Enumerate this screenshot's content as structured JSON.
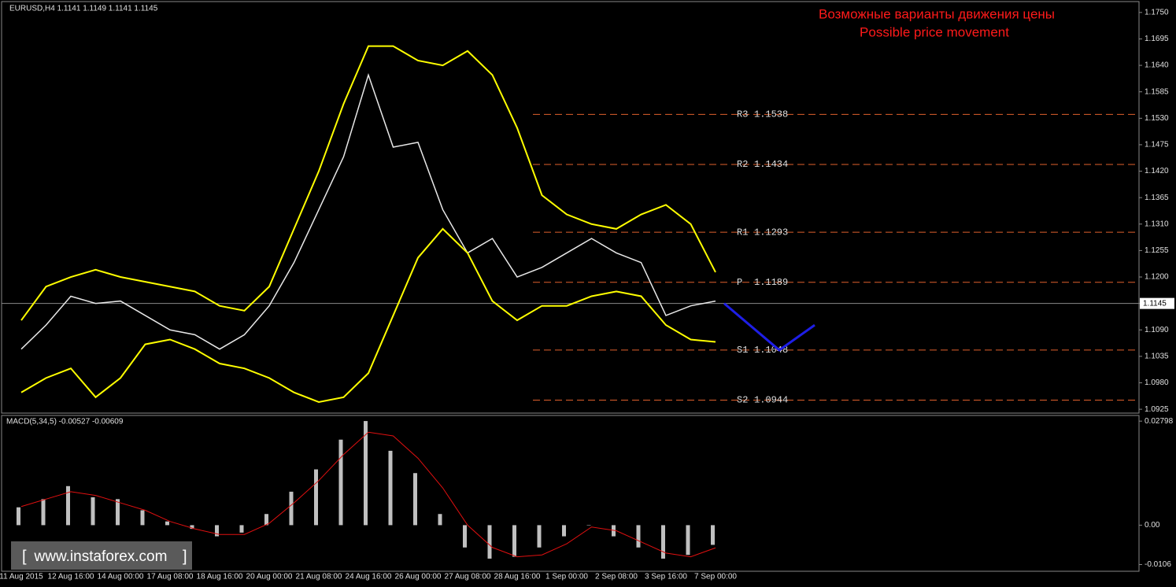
{
  "chart_data": [
    {
      "type": "price",
      "header": "EURUSD,H4  1.1141 1.1149 1.1141 1.1145",
      "annotation": [
        "Возможные варианты движения цены",
        "Possible price movement"
      ],
      "ylim": [
        1.0917,
        1.1771
      ],
      "yticks": [
        {
          "value": 1.175,
          "label": "1.1750"
        },
        1.1695,
        {
          "value": 1.164,
          "label": "1.1640"
        },
        1.1585,
        {
          "value": 1.153,
          "label": "1.1530"
        },
        1.1475,
        {
          "value": 1.142,
          "label": "1.1420"
        },
        1.1365,
        {
          "value": 1.131,
          "label": "1.1310"
        },
        1.1255,
        {
          "value": 1.12,
          "label": "1.1200"
        },
        1.1145,
        {
          "value": 1.109,
          "label": "1.1090"
        },
        1.1035,
        {
          "value": 1.098,
          "label": "1.0980"
        },
        1.0925
      ],
      "current_price": 1.1145,
      "series": [
        {
          "name": "Close",
          "color": "#e8e8e8",
          "values": [
            1.105,
            1.11,
            1.116,
            1.1145,
            1.115,
            1.112,
            1.109,
            1.108,
            1.105,
            1.108,
            1.114,
            1.123,
            1.134,
            1.145,
            1.162,
            1.147,
            1.148,
            1.134,
            1.125,
            1.128,
            1.12,
            1.122,
            1.125,
            1.128,
            1.125,
            1.123,
            1.112,
            1.114,
            1.115
          ]
        },
        {
          "name": "Upper band",
          "color": "#ffff00",
          "values": [
            1.111,
            1.118,
            1.12,
            1.1215,
            1.12,
            1.119,
            1.118,
            1.117,
            1.114,
            1.113,
            1.118,
            1.13,
            1.142,
            1.156,
            1.168,
            1.168,
            1.165,
            1.164,
            1.167,
            1.162,
            1.151,
            1.137,
            1.133,
            1.131,
            1.13,
            1.133,
            1.135,
            1.131,
            1.121
          ]
        },
        {
          "name": "Lower band",
          "color": "#ffff00",
          "values": [
            1.096,
            1.099,
            1.101,
            1.095,
            1.099,
            1.106,
            1.107,
            1.105,
            1.102,
            1.101,
            1.099,
            1.096,
            1.094,
            1.095,
            1.1,
            1.112,
            1.124,
            1.13,
            1.125,
            1.115,
            1.111,
            1.114,
            1.114,
            1.116,
            1.117,
            1.116,
            1.11,
            1.107,
            1.1065
          ]
        }
      ],
      "levels": [
        {
          "name": "R3",
          "value": 1.1538
        },
        {
          "name": "R2",
          "value": 1.1434
        },
        {
          "name": "R1",
          "value": 1.1293
        },
        {
          "name": "P",
          "value": 1.1189
        },
        {
          "name": "S1",
          "value": 1.1048
        },
        {
          "name": "S2",
          "value": 1.0944
        }
      ],
      "level_color": "#e0602c",
      "projection": {
        "color": "#1e1ee6",
        "values": [
          1.1145,
          1.1048,
          1.11
        ]
      }
    },
    {
      "type": "macd",
      "header": "MACD(5,34,5) -0.00527 -0.00609",
      "ylim": [
        -0.0124,
        0.0295
      ],
      "yticks": [
        0.02798,
        {
          "value": 0,
          "label": "0.00"
        },
        -0.0106
      ],
      "categories": [
        "11 Aug 2015",
        null,
        "12 Aug 16:00",
        null,
        "14 Aug 00:00",
        null,
        "17 Aug 08:00",
        null,
        "18 Aug 16:00",
        null,
        "20 Aug 00:00",
        null,
        "21 Aug 08:00",
        null,
        "24 Aug 16:00",
        null,
        "26 Aug 00:00",
        null,
        "27 Aug 08:00",
        null,
        "28 Aug 16:00",
        null,
        "1 Sep 00:00",
        null,
        "2 Sep 08:00",
        null,
        "3 Sep 16:00",
        null,
        "7 Sep 00:00"
      ],
      "series": [
        {
          "name": "MACD",
          "color": "#c0c0c0",
          "values": [
            0.0048,
            0.007,
            0.0105,
            0.0075,
            0.007,
            0.004,
            0.001,
            -0.001,
            -0.003,
            -0.002,
            0.003,
            0.009,
            0.015,
            0.023,
            0.028,
            0.02,
            0.014,
            0.003,
            -0.006,
            -0.009,
            -0.0085,
            -0.006,
            -0.003,
            0,
            -0.003,
            -0.006,
            -0.009,
            -0.008,
            -0.0053
          ]
        },
        {
          "name": "Signal",
          "color": "#e01010",
          "values": [
            0.005,
            0.007,
            0.009,
            0.008,
            0.006,
            0.004,
            0.001,
            -0.001,
            -0.0025,
            -0.0025,
            0.0005,
            0.006,
            0.012,
            0.019,
            0.025,
            0.024,
            0.018,
            0.01,
            0,
            -0.006,
            -0.0085,
            -0.008,
            -0.005,
            -0.0005,
            -0.0015,
            -0.0045,
            -0.0075,
            -0.0085,
            -0.0061
          ]
        }
      ]
    }
  ],
  "watermark": "www.instaforex.com"
}
